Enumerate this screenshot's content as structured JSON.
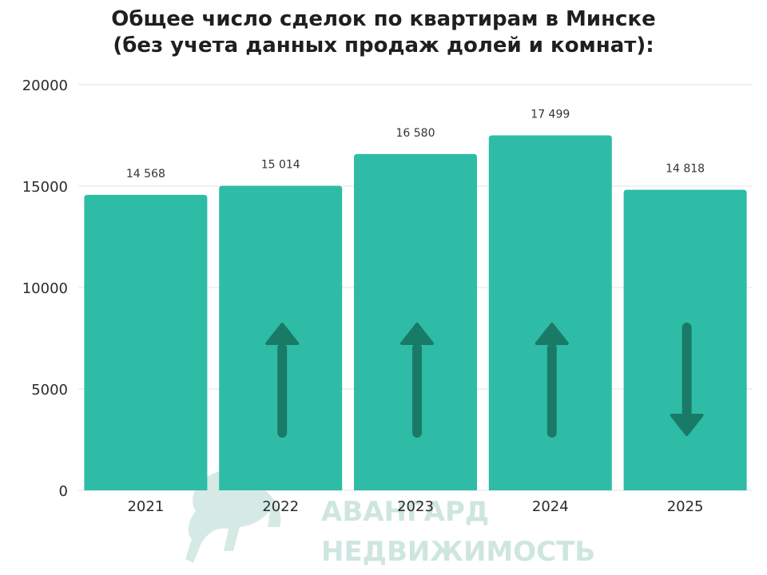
{
  "chart_data": {
    "type": "bar",
    "title_lines": [
      "Общее число сделок по квартирам в Минске",
      "(без учета данных продаж долей и комнат):"
    ],
    "categories": [
      "2021",
      "2022",
      "2023",
      "2024",
      "2025"
    ],
    "values": [
      14568,
      15014,
      16580,
      17499,
      14818
    ],
    "value_labels": [
      "14 568",
      "15 014",
      "16 580",
      "17 499",
      "14 818"
    ],
    "trend_arrows": [
      null,
      "up",
      "up",
      "up",
      "down"
    ],
    "yticks": [
      "0",
      "5000",
      "10000",
      "15000",
      "20000"
    ],
    "ylim": [
      0,
      20000
    ],
    "grid": true,
    "xlabel": "",
    "ylabel": "",
    "colors": {
      "bar": "#2ebca6",
      "arrow": "#1a7a68",
      "grid": "#e3e3e3",
      "watermark": "#cfe6e0"
    }
  },
  "watermark": {
    "line1": "АВАНГАРД",
    "line2": "НЕДВИЖИМОСТЬ"
  }
}
